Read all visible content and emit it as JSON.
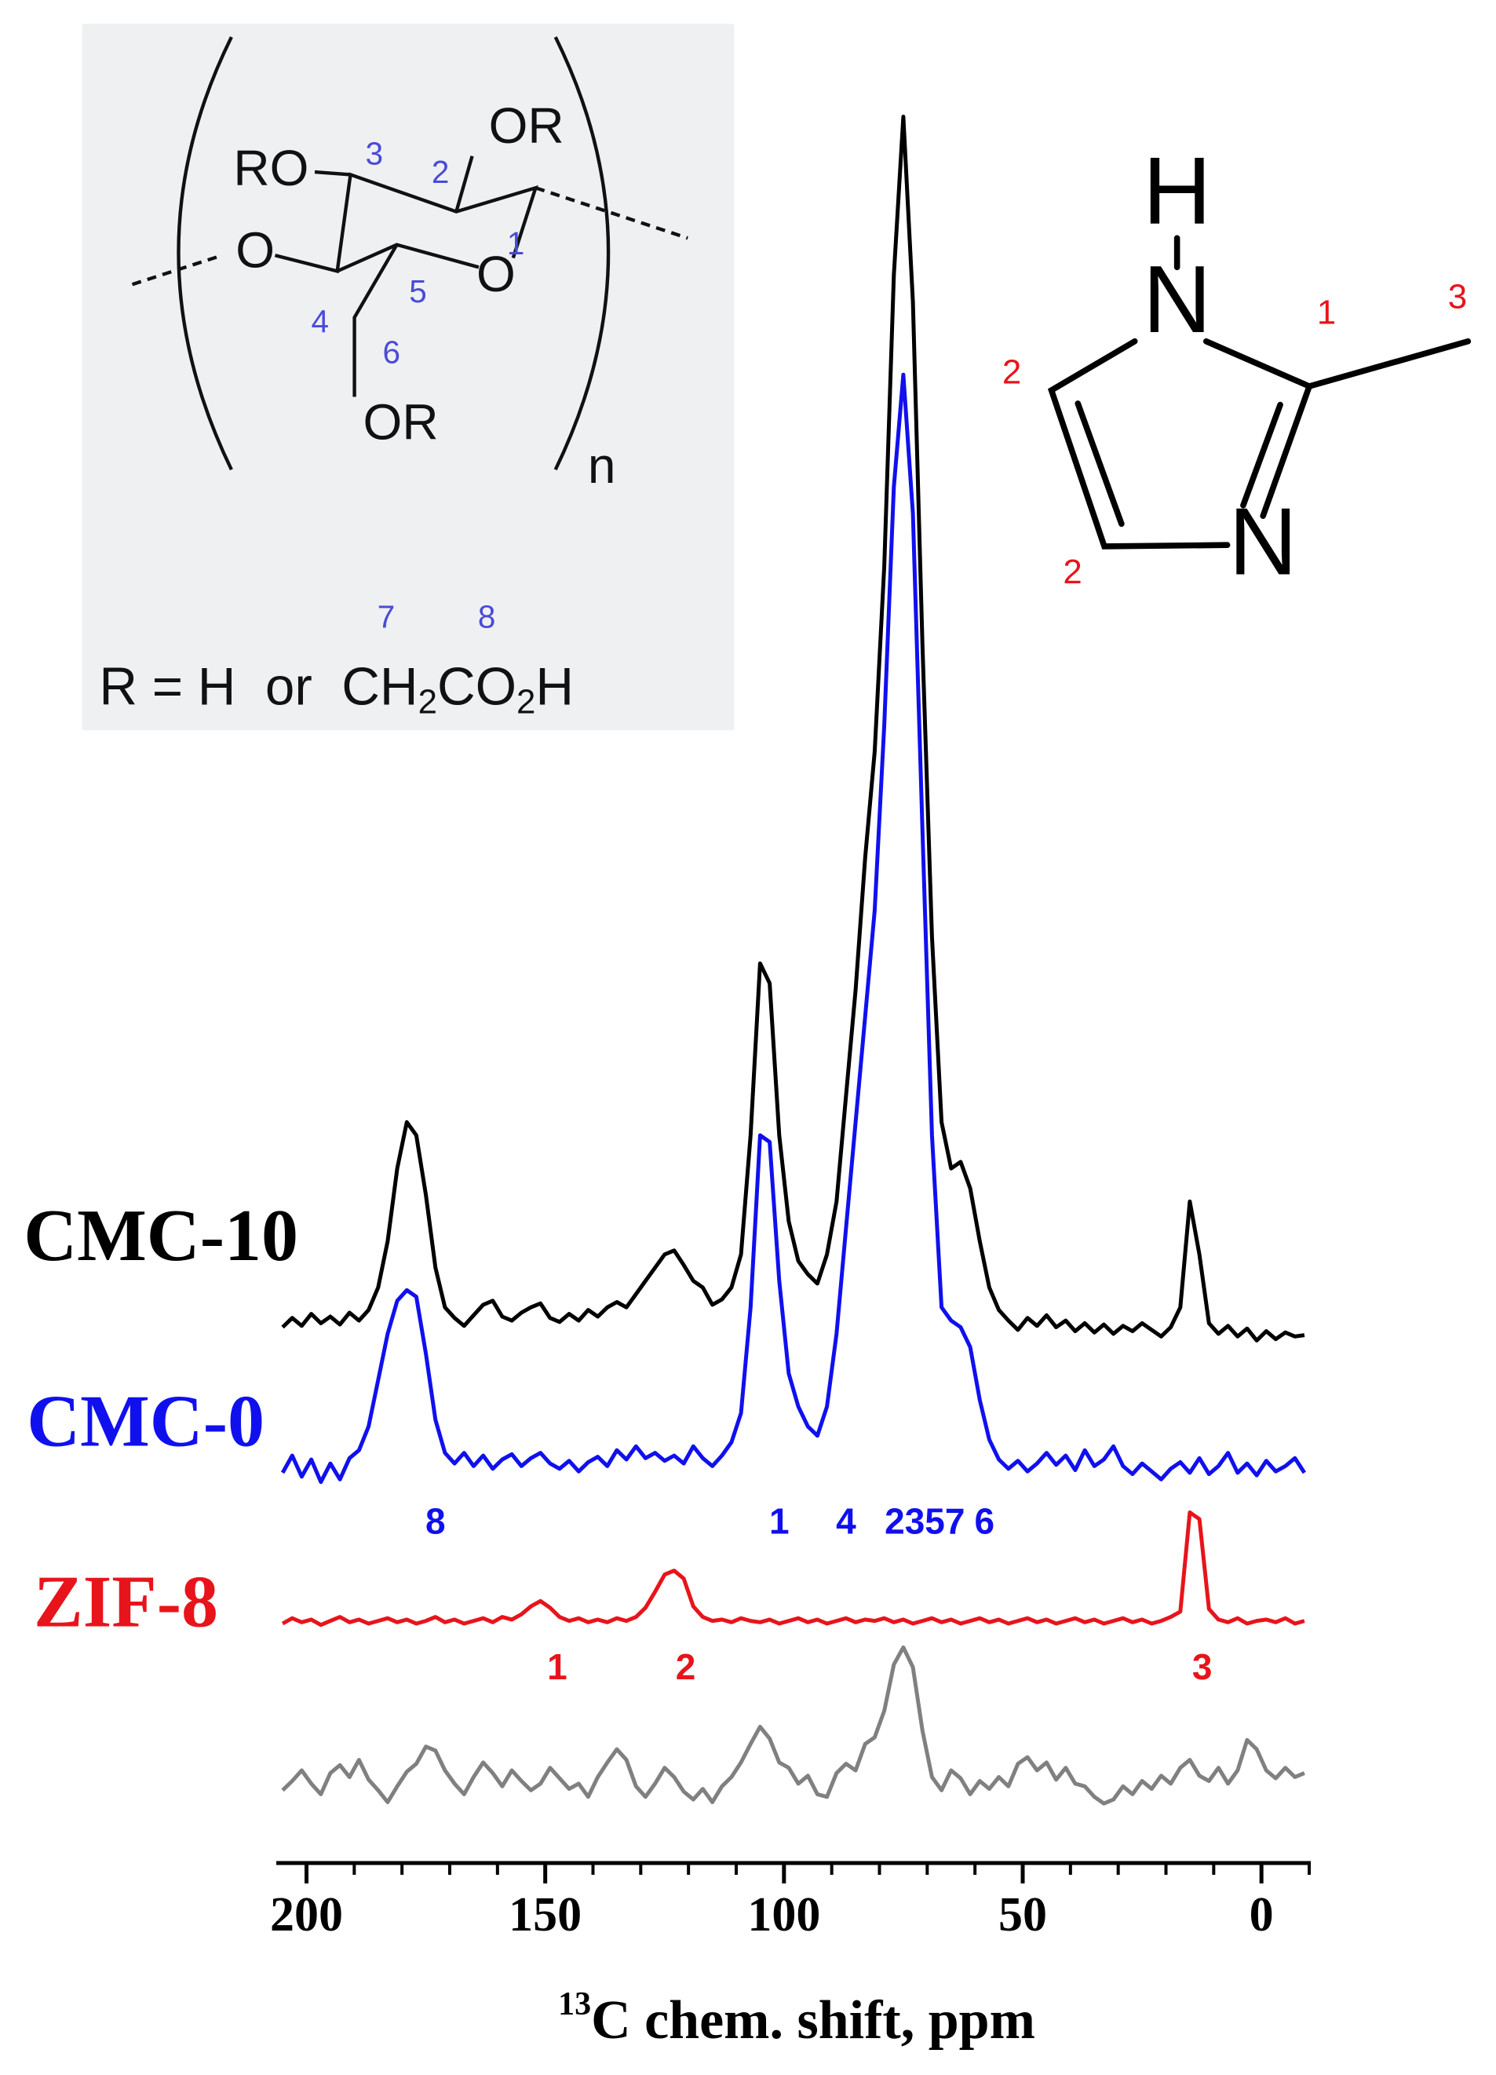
{
  "chart_data": {
    "type": "line",
    "xlabel_superscript": "13",
    "xlabel": "C chem. shift, ppm",
    "xlim": [
      206,
      -10
    ],
    "xticks": [
      200,
      150,
      100,
      50,
      0
    ],
    "xminorticks": [
      190,
      180,
      170,
      160,
      140,
      130,
      120,
      110,
      90,
      80,
      70,
      60,
      40,
      30,
      20,
      10,
      -10
    ],
    "ylim": [
      0,
      135
    ],
    "x": [
      205,
      203,
      201,
      199,
      197,
      195,
      193,
      191,
      189,
      187,
      185,
      183,
      181,
      179,
      177,
      175,
      173,
      171,
      169,
      167,
      165,
      163,
      161,
      159,
      157,
      155,
      153,
      151,
      149,
      147,
      145,
      143,
      141,
      139,
      137,
      135,
      133,
      131,
      129,
      127,
      125,
      123,
      121,
      119,
      117,
      115,
      113,
      111,
      109,
      107,
      105,
      103,
      101,
      99,
      97,
      95,
      93,
      91,
      89,
      87,
      85,
      83,
      81,
      79,
      77,
      75,
      73,
      71,
      69,
      67,
      65,
      63,
      61,
      59,
      57,
      55,
      53,
      51,
      49,
      47,
      45,
      43,
      41,
      39,
      37,
      35,
      33,
      31,
      29,
      27,
      25,
      23,
      21,
      19,
      17,
      15,
      13,
      11,
      9,
      7,
      5,
      3,
      1,
      -1,
      -3,
      -5,
      -7,
      -9
    ],
    "series": [
      {
        "name": "CMC-10",
        "color": "#000000",
        "values": [
          40.5,
          41.2,
          40.6,
          41.5,
          40.8,
          41.3,
          40.7,
          41.6,
          41.0,
          41.8,
          43.5,
          47.0,
          52.5,
          56.0,
          55.0,
          50.5,
          45.0,
          42.0,
          41.2,
          40.6,
          41.4,
          42.2,
          42.5,
          41.3,
          41.0,
          41.6,
          42.0,
          42.3,
          41.2,
          40.9,
          41.5,
          41.0,
          41.8,
          41.3,
          42.0,
          42.4,
          42.0,
          43.0,
          44.0,
          45.0,
          46.0,
          46.3,
          45.2,
          44.0,
          43.5,
          42.2,
          42.6,
          43.5,
          46.0,
          55.0,
          68.0,
          66.5,
          55.0,
          48.5,
          45.5,
          44.5,
          43.8,
          46.0,
          50.0,
          58.0,
          66.0,
          76.0,
          84.0,
          98.0,
          120.0,
          132.0,
          118.0,
          92.0,
          70.0,
          56.0,
          52.5,
          53.0,
          51.0,
          47.0,
          43.5,
          41.8,
          41.0,
          40.3,
          41.2,
          40.6,
          41.4,
          40.5,
          41.0,
          40.2,
          40.8,
          40.1,
          40.7,
          40.0,
          40.6,
          40.2,
          40.8,
          40.3,
          39.8,
          40.5,
          42.0,
          50.0,
          46.0,
          40.8,
          40.0,
          40.6,
          39.8,
          40.4,
          39.5,
          40.2,
          39.6,
          40.1,
          39.8,
          39.9
        ]
      },
      {
        "name": "CMC-0",
        "color": "#1010ee",
        "values": [
          29.5,
          30.8,
          29.2,
          30.5,
          28.8,
          30.2,
          29.0,
          30.6,
          31.2,
          33.0,
          36.5,
          40.0,
          42.5,
          43.3,
          42.8,
          38.5,
          33.5,
          31.0,
          30.2,
          31.0,
          30.0,
          30.8,
          29.8,
          30.5,
          30.9,
          30.0,
          30.6,
          31.0,
          30.2,
          29.8,
          30.4,
          29.6,
          30.3,
          30.7,
          30.0,
          31.2,
          30.5,
          31.5,
          30.6,
          31.0,
          30.4,
          30.8,
          30.2,
          31.5,
          30.6,
          30.0,
          30.8,
          31.8,
          34.0,
          42.0,
          55.0,
          54.5,
          44.0,
          37.0,
          34.5,
          33.0,
          32.3,
          34.5,
          40.0,
          48.0,
          56.0,
          64.0,
          72.0,
          86.0,
          104.0,
          112.5,
          102.0,
          78.0,
          55.0,
          42.0,
          41.0,
          40.5,
          39.0,
          35.0,
          32.0,
          30.5,
          29.8,
          30.4,
          29.6,
          30.2,
          31.0,
          30.1,
          30.8,
          29.7,
          31.2,
          30.0,
          30.5,
          31.5,
          30.0,
          29.4,
          30.2,
          29.6,
          29.0,
          29.8,
          30.3,
          29.5,
          30.6,
          29.4,
          30.0,
          31.0,
          29.5,
          30.2,
          29.3,
          30.4,
          29.6,
          30.0,
          30.6,
          29.5
        ]
      },
      {
        "name": "ZIF-8",
        "color": "#e8141b",
        "values": [
          18.1,
          18.5,
          18.2,
          18.4,
          18.0,
          18.3,
          18.6,
          18.2,
          18.4,
          18.1,
          18.3,
          18.5,
          18.2,
          18.4,
          18.1,
          18.3,
          18.6,
          18.2,
          18.4,
          18.1,
          18.3,
          18.5,
          18.2,
          18.6,
          18.4,
          18.8,
          19.4,
          19.8,
          19.3,
          18.6,
          18.3,
          18.5,
          18.2,
          18.4,
          18.2,
          18.5,
          18.3,
          18.6,
          19.3,
          20.5,
          21.8,
          22.1,
          21.5,
          19.4,
          18.6,
          18.3,
          18.4,
          18.2,
          18.5,
          18.3,
          18.2,
          18.4,
          18.1,
          18.3,
          18.5,
          18.2,
          18.4,
          18.1,
          18.3,
          18.5,
          18.2,
          18.4,
          18.3,
          18.5,
          18.2,
          18.4,
          18.1,
          18.3,
          18.5,
          18.2,
          18.4,
          18.1,
          18.3,
          18.5,
          18.2,
          18.4,
          18.1,
          18.3,
          18.5,
          18.2,
          18.4,
          18.1,
          18.3,
          18.5,
          18.2,
          18.4,
          18.1,
          18.3,
          18.5,
          18.2,
          18.4,
          18.1,
          18.3,
          18.6,
          19.0,
          26.5,
          26.0,
          19.2,
          18.4,
          18.2,
          18.5,
          18.1,
          18.3,
          18.4,
          18.2,
          18.5,
          18.1,
          18.3
        ]
      },
      {
        "color": "#808080",
        "values": [
          5.5,
          6.2,
          7.0,
          6.0,
          5.2,
          6.8,
          7.4,
          6.5,
          7.8,
          6.3,
          5.5,
          4.6,
          5.8,
          6.9,
          7.5,
          8.8,
          8.5,
          7.0,
          6.0,
          5.2,
          6.5,
          7.6,
          6.8,
          5.8,
          7.0,
          6.2,
          5.5,
          6.0,
          7.2,
          6.4,
          5.6,
          6.0,
          5.0,
          6.5,
          7.6,
          8.6,
          7.8,
          5.8,
          5.0,
          6.0,
          7.2,
          6.5,
          5.4,
          4.8,
          5.6,
          4.6,
          5.8,
          6.5,
          7.6,
          9.0,
          10.3,
          9.4,
          7.6,
          7.2,
          6.0,
          6.6,
          5.2,
          5.0,
          6.8,
          7.5,
          7.0,
          9.0,
          9.5,
          11.5,
          15.0,
          16.3,
          14.8,
          10.0,
          6.5,
          5.5,
          7.0,
          6.4,
          5.2,
          6.2,
          5.6,
          6.5,
          5.8,
          7.5,
          8.0,
          7.0,
          7.6,
          6.3,
          7.2,
          6.0,
          5.8,
          5.0,
          4.5,
          4.8,
          5.8,
          5.2,
          6.2,
          5.6,
          6.6,
          6.0,
          7.2,
          7.8,
          6.6,
          6.2,
          7.2,
          6.0,
          7.0,
          9.3,
          8.6,
          7.0,
          6.4,
          7.2,
          6.5,
          6.8
        ]
      }
    ],
    "annotations": [
      {
        "text": "8",
        "x": 173,
        "y": 25.6,
        "color": "#1010ee"
      },
      {
        "text": "1",
        "x": 101,
        "y": 25.6,
        "color": "#1010ee"
      },
      {
        "text": "4",
        "x": 87,
        "y": 25.6,
        "color": "#1010ee"
      },
      {
        "text": "2357",
        "x": 70.5,
        "y": 25.6,
        "color": "#1010ee"
      },
      {
        "text": "6",
        "x": 58,
        "y": 25.6,
        "color": "#1010ee"
      },
      {
        "text": "1",
        "x": 147.5,
        "y": 14.6,
        "color": "#e8141b"
      },
      {
        "text": "2",
        "x": 120.6,
        "y": 14.6,
        "color": "#e8141b"
      },
      {
        "text": "3",
        "x": 12.4,
        "y": 14.6,
        "color": "#e8141b"
      }
    ]
  },
  "cellulose": {
    "groups": [
      "RO",
      "OR",
      "O",
      "O",
      "OR"
    ],
    "positions": [
      "1",
      "2",
      "3",
      "4",
      "5",
      "6",
      "7",
      "8"
    ],
    "repeat": "n",
    "formula": [
      "R = H  or  CH",
      "2",
      "CO",
      "2",
      "H"
    ]
  },
  "imidazole": {
    "atoms": [
      "H",
      "N",
      "N"
    ],
    "positions": [
      "1",
      "3",
      "2",
      "2"
    ]
  }
}
